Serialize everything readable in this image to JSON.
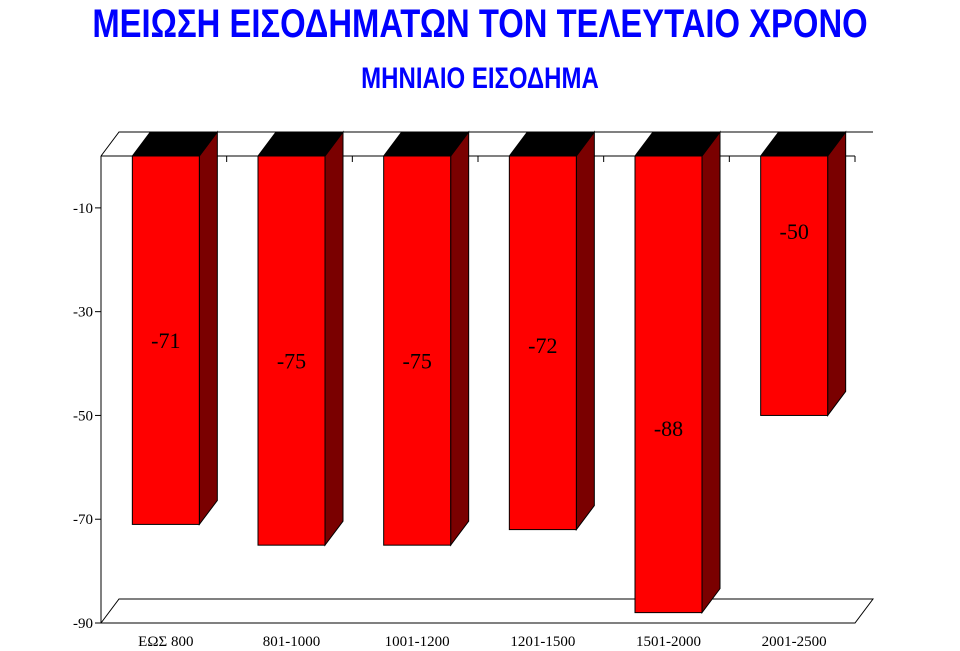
{
  "title": "ΜΕΙΩΣΗ ΕΙΣΟΔΗΜΑΤΩΝ ΤΟΝ ΤΕΛΕΥΤΑΙΟ ΧΡΟΝΟ",
  "subtitle": "ΜΗΝΙΑΙΟ ΕΙΣΟΔΗΜΑ",
  "colors": {
    "title": "#0000ff",
    "bar_front": "#ff0000",
    "bar_side": "#7a0000",
    "bar_top": "#000000"
  },
  "chart_data": {
    "type": "bar",
    "style": "3d",
    "categories": [
      "ΕΩΣ 800",
      "801-1000",
      "1001-1200",
      "1201-1500",
      "1501-2000",
      "2001-2500"
    ],
    "values": [
      -71,
      -75,
      -75,
      -72,
      -88,
      -50
    ],
    "data_labels": [
      "-71",
      "-75",
      "-75",
      "-72",
      "-88",
      "-50"
    ],
    "y_ticks": [
      "-10",
      "-30",
      "-50",
      "-70",
      "-90"
    ],
    "ylim": [
      -90,
      0
    ],
    "title": "ΜΕΙΩΣΗ ΕΙΣΟΔΗΜΑΤΩΝ ΤΟΝ ΤΕΛΕΥΤΑΙΟ ΧΡΟΝΟ",
    "subtitle": "ΜΗΝΙΑΙΟ ΕΙΣΟΔΗΜΑ",
    "grid": false,
    "legend": "none"
  }
}
